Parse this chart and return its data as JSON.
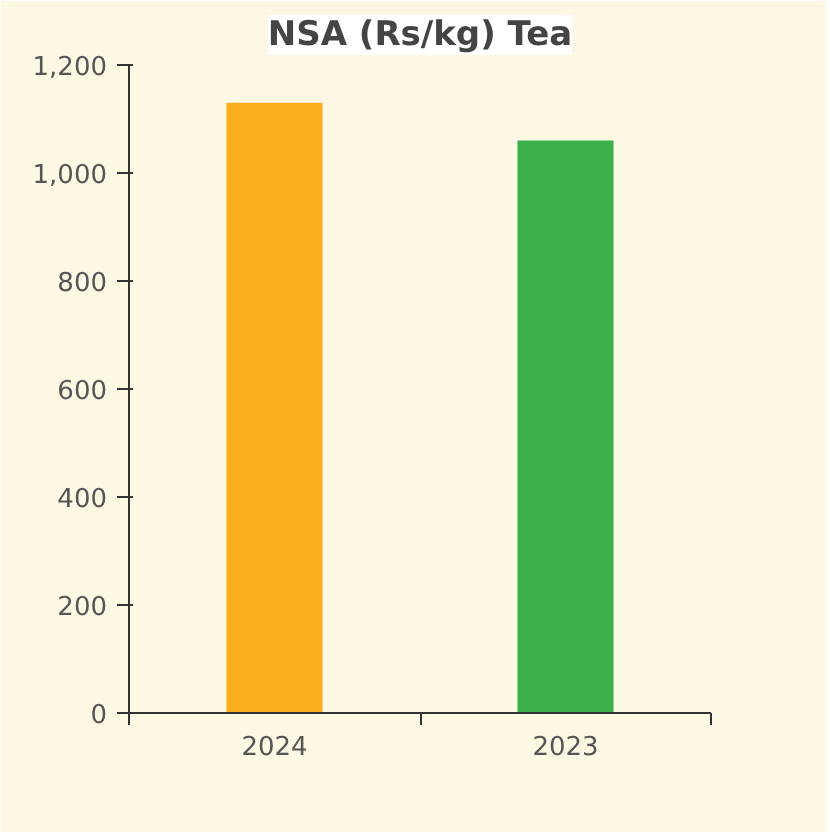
{
  "chart_data": {
    "type": "bar",
    "title": "NSA (Rs/kg) Tea",
    "categories": [
      "2024",
      "2023"
    ],
    "values": [
      1130,
      1060
    ],
    "colors": [
      "#f9b01c",
      "#3cb04a"
    ],
    "ylim": [
      0,
      1200
    ],
    "yticks": [
      0,
      {
        "value": 200,
        "label": "200"
      },
      {
        "value": 400,
        "label": "400"
      },
      {
        "value": 600,
        "label": "600"
      },
      {
        "value": 800,
        "label": "800"
      },
      {
        "value": 1000,
        "label": "1,000"
      },
      {
        "value": 1200,
        "label": "1,200"
      }
    ],
    "grid": false
  }
}
